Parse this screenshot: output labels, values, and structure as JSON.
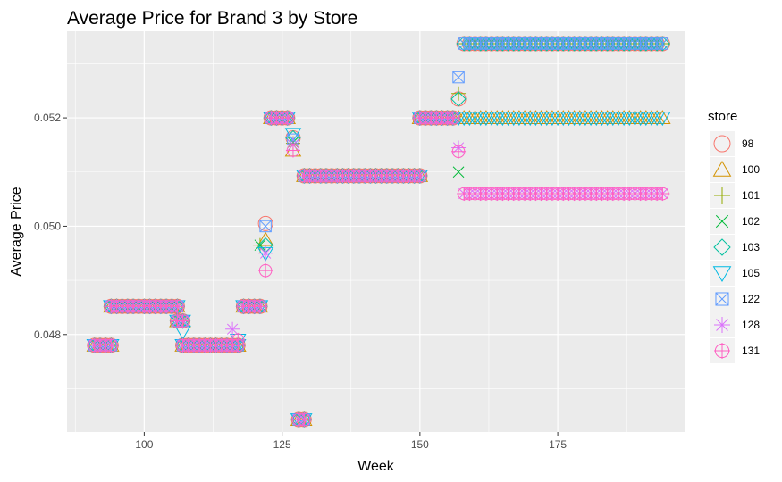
{
  "chart_data": {
    "type": "scatter",
    "title": "Average Price for Brand 3 by Store",
    "xlabel": "Week",
    "ylabel": "Average Price",
    "xlim": [
      86,
      198
    ],
    "ylim": [
      0.0462,
      0.0536
    ],
    "xticks": [
      100,
      125,
      150,
      175
    ],
    "yticks": [
      0.048,
      0.05,
      0.052
    ],
    "ytick_labels": [
      "0.048",
      "0.050",
      "0.052"
    ],
    "grid": true,
    "legend": {
      "title": "store",
      "position": "right"
    },
    "series": [
      {
        "name": "98",
        "color": "#F8766D",
        "shape": "circle",
        "segments": [
          [
            91,
            94,
            0.0478
          ],
          [
            94,
            106,
            0.04852
          ],
          [
            106,
            107,
            0.04825
          ],
          [
            107,
            117,
            0.0478
          ],
          [
            118,
            121,
            0.04852
          ],
          [
            123,
            126,
            0.052
          ],
          [
            129,
            150,
            0.05093
          ],
          [
            150,
            156,
            0.052
          ],
          [
            158,
            194,
            0.05337
          ]
        ],
        "points": [
          [
            122,
            0.05005
          ],
          [
            127,
            0.05163
          ],
          [
            128,
            0.04643
          ],
          [
            129,
            0.04643
          ],
          [
            157,
            0.05235
          ]
        ]
      },
      {
        "name": "100",
        "color": "#D39200",
        "shape": "triangle",
        "segments": [
          [
            91,
            94,
            0.0478
          ],
          [
            94,
            106,
            0.04852
          ],
          [
            106,
            107,
            0.04825
          ],
          [
            107,
            117,
            0.0478
          ],
          [
            118,
            121,
            0.04852
          ],
          [
            123,
            126,
            0.052
          ],
          [
            129,
            150,
            0.05093
          ],
          [
            150,
            156,
            0.052
          ],
          [
            158,
            194,
            0.052
          ]
        ],
        "points": [
          [
            117,
            0.0478
          ],
          [
            122,
            0.04975
          ],
          [
            127,
            0.0514
          ],
          [
            128,
            0.04643
          ],
          [
            129,
            0.04643
          ],
          [
            157,
            0.052
          ]
        ]
      },
      {
        "name": "101",
        "color": "#93AA00",
        "shape": "plus",
        "segments": [
          [
            91,
            94,
            0.0478
          ],
          [
            94,
            106,
            0.04852
          ],
          [
            106,
            107,
            0.04825
          ],
          [
            107,
            117,
            0.0478
          ],
          [
            118,
            121,
            0.04852
          ],
          [
            123,
            126,
            0.052
          ],
          [
            129,
            150,
            0.05093
          ],
          [
            150,
            156,
            0.052
          ],
          [
            158,
            194,
            0.05337
          ]
        ],
        "points": [
          [
            121,
            0.04965
          ],
          [
            127,
            0.05153
          ],
          [
            128,
            0.04643
          ],
          [
            129,
            0.04643
          ],
          [
            157,
            0.05245
          ]
        ]
      },
      {
        "name": "102",
        "color": "#00BA38",
        "shape": "cross",
        "segments": [
          [
            91,
            94,
            0.0478
          ],
          [
            94,
            106,
            0.04852
          ],
          [
            106,
            107,
            0.04825
          ],
          [
            107,
            117,
            0.0478
          ],
          [
            118,
            121,
            0.04852
          ],
          [
            123,
            126,
            0.052
          ],
          [
            129,
            150,
            0.05093
          ],
          [
            150,
            156,
            0.052
          ],
          [
            158,
            194,
            0.05337
          ]
        ],
        "points": [
          [
            121,
            0.04965
          ],
          [
            127,
            0.05155
          ],
          [
            128,
            0.04643
          ],
          [
            129,
            0.04643
          ],
          [
            157,
            0.051
          ]
        ]
      },
      {
        "name": "103",
        "color": "#00C19F",
        "shape": "diamond",
        "segments": [
          [
            91,
            94,
            0.0478
          ],
          [
            94,
            106,
            0.04852
          ],
          [
            106,
            107,
            0.04825
          ],
          [
            107,
            117,
            0.0478
          ],
          [
            118,
            121,
            0.04852
          ],
          [
            123,
            126,
            0.052
          ],
          [
            129,
            150,
            0.05093
          ],
          [
            150,
            156,
            0.052
          ],
          [
            158,
            194,
            0.05337
          ]
        ],
        "points": [
          [
            122,
            0.04965
          ],
          [
            127,
            0.05163
          ],
          [
            128,
            0.04643
          ],
          [
            129,
            0.04643
          ],
          [
            157,
            0.05235
          ]
        ]
      },
      {
        "name": "105",
        "color": "#00B9E3",
        "shape": "triangle-down",
        "segments": [
          [
            91,
            94,
            0.0478
          ],
          [
            94,
            106,
            0.04852
          ],
          [
            106,
            107,
            0.04825
          ],
          [
            107,
            117,
            0.0478
          ],
          [
            118,
            121,
            0.04852
          ],
          [
            123,
            126,
            0.052
          ],
          [
            129,
            150,
            0.05093
          ],
          [
            150,
            156,
            0.052
          ],
          [
            158,
            194,
            0.052
          ]
        ],
        "points": [
          [
            107,
            0.04805
          ],
          [
            117,
            0.0479
          ],
          [
            122,
            0.0495
          ],
          [
            127,
            0.0517
          ],
          [
            128,
            0.04643
          ],
          [
            129,
            0.04643
          ],
          [
            157,
            0.052
          ]
        ]
      },
      {
        "name": "122",
        "color": "#619CFF",
        "shape": "square-cross",
        "segments": [
          [
            91,
            94,
            0.0478
          ],
          [
            94,
            106,
            0.04852
          ],
          [
            106,
            107,
            0.04825
          ],
          [
            107,
            117,
            0.0478
          ],
          [
            118,
            121,
            0.04852
          ],
          [
            123,
            126,
            0.052
          ],
          [
            129,
            150,
            0.05093
          ],
          [
            150,
            156,
            0.052
          ],
          [
            158,
            194,
            0.05337
          ]
        ],
        "points": [
          [
            122,
            0.05
          ],
          [
            127,
            0.0516
          ],
          [
            128,
            0.04643
          ],
          [
            129,
            0.04643
          ],
          [
            157,
            0.05275
          ]
        ]
      },
      {
        "name": "128",
        "color": "#DB72FB",
        "shape": "star",
        "segments": [
          [
            91,
            94,
            0.0478
          ],
          [
            94,
            106,
            0.04852
          ],
          [
            106,
            107,
            0.04825
          ],
          [
            107,
            116,
            0.0478
          ],
          [
            118,
            121,
            0.04852
          ],
          [
            123,
            126,
            0.052
          ],
          [
            129,
            150,
            0.05093
          ],
          [
            150,
            156,
            0.052
          ],
          [
            158,
            194,
            0.0506
          ]
        ],
        "points": [
          [
            116,
            0.0481
          ],
          [
            122,
            0.0495
          ],
          [
            127,
            0.0515
          ],
          [
            128,
            0.04643
          ],
          [
            129,
            0.04643
          ],
          [
            157,
            0.05145
          ]
        ]
      },
      {
        "name": "131",
        "color": "#FF61C3",
        "shape": "circle-plus",
        "segments": [
          [
            91,
            94,
            0.0478
          ],
          [
            94,
            106,
            0.04852
          ],
          [
            106,
            107,
            0.04825
          ],
          [
            107,
            117,
            0.0478
          ],
          [
            118,
            121,
            0.04852
          ],
          [
            123,
            126,
            0.052
          ],
          [
            129,
            150,
            0.05093
          ],
          [
            150,
            156,
            0.052
          ],
          [
            158,
            194,
            0.0506
          ]
        ],
        "points": [
          [
            117,
            0.0479
          ],
          [
            122,
            0.04918
          ],
          [
            127,
            0.0514
          ],
          [
            128,
            0.04643
          ],
          [
            129,
            0.04643
          ],
          [
            157,
            0.05138
          ]
        ]
      }
    ]
  }
}
